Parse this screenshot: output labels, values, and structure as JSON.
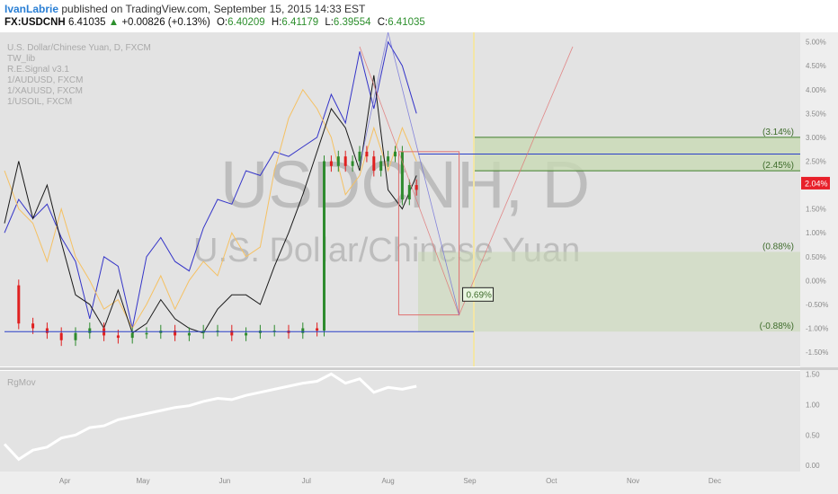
{
  "header": {
    "author": "IvanLabrie",
    "published_text": "published on TradingView.com, September 15, 2015 14:33 EST",
    "symbol": "FX:USDCNH",
    "last": "6.41035",
    "change_arrow": "▲",
    "change": "+0.00826 (+0.13%)",
    "o_label": "O:",
    "o_value": "6.40209",
    "h_label": "H:",
    "h_value": "6.41179",
    "l_label": "L:",
    "l_value": "6.39554",
    "c_label": "C:",
    "c_value": "6.41035"
  },
  "legend": [
    "U.S. Dollar/Chinese Yuan, D, FXCM",
    "TW_lib",
    "R.E.Signal v3.1",
    "1/AUDUSD, FXCM",
    "1/XAUUSD, FXCM",
    "1/USOIL, FXCM"
  ],
  "watermark": {
    "symbol": "USDCNH, D",
    "name": "U.S. Dollar/Chinese Yuan"
  },
  "colors": {
    "background": "#e3e3e3",
    "up_candle": "#2e8b2e",
    "down_candle": "#e02020",
    "neutral_candle": "#111111",
    "audusd_line": "#3434c8",
    "xauusd_line": "#f5c163",
    "usoil_line": "#1a1a1a",
    "level_line": "#2a3ec8",
    "fib_zone": "#c8d9b4",
    "projection": "#e07070",
    "vertical_marker": "#f3e6a6",
    "price_badge": "#e8202a"
  },
  "price_badge": "2.04%",
  "measure_label": "0.69%",
  "indicator": {
    "name": "RgMov",
    "color": "#ffffff"
  },
  "chart_data": [
    {
      "type": "line",
      "title": "U.S. Dollar/Chinese Yuan, D, FXCM",
      "x_ticks": [
        "Apr",
        "May",
        "Jun",
        "Jul",
        "Aug",
        "Sep",
        "Oct",
        "Nov",
        "Dec"
      ],
      "y_ticks": [
        "5.00%",
        "4.50%",
        "4.00%",
        "3.50%",
        "3.00%",
        "2.50%",
        "2.00%",
        "1.50%",
        "1.00%",
        "0.50%",
        "0.00%",
        "-0.50%",
        "-1.00%",
        "-1.50%"
      ],
      "ylim": [
        -1.8,
        5.2
      ],
      "fib_levels": [
        {
          "label": "(3.14%)",
          "value": 3.0
        },
        {
          "label": "(2.45%)",
          "value": 2.3
        },
        {
          "label": "(0.88%)",
          "value": 0.6
        },
        {
          "label": "(-0.88%)",
          "value": -1.07
        }
      ],
      "horizontal_level": -1.07,
      "series": [
        {
          "name": "U.S. Dollar/Chinese Yuan",
          "x": [
            0,
            4,
            8,
            12,
            16,
            20,
            24,
            28,
            32,
            36,
            40,
            44,
            48,
            52,
            56,
            60,
            64,
            68,
            72,
            76,
            80,
            84,
            88,
            90,
            92,
            94,
            96,
            98,
            100,
            102,
            104,
            106,
            108,
            110,
            112,
            114,
            116
          ],
          "values": [
            -0.1,
            -0.9,
            -1.0,
            -1.1,
            -1.25,
            -1.1,
            -1.0,
            -1.15,
            -1.2,
            -1.1,
            -1.1,
            -1.05,
            -1.15,
            -1.1,
            -1.05,
            -1.05,
            -1.15,
            -1.1,
            -1.05,
            -1.05,
            -1.1,
            -1.0,
            -1.05,
            2.5,
            2.4,
            2.6,
            2.4,
            2.5,
            2.7,
            2.6,
            2.3,
            2.5,
            2.6,
            2.7,
            1.7,
            2.0,
            1.9
          ]
        },
        {
          "name": "1/AUDUSD",
          "x": [
            0,
            4,
            8,
            12,
            16,
            20,
            24,
            28,
            32,
            36,
            40,
            44,
            48,
            52,
            56,
            60,
            64,
            68,
            72,
            76,
            80,
            84,
            88,
            92,
            96,
            100,
            104,
            108,
            112,
            116
          ],
          "values": [
            1.0,
            1.7,
            1.3,
            1.6,
            0.9,
            0.4,
            -0.8,
            0.5,
            0.3,
            -1.0,
            0.5,
            0.9,
            0.4,
            0.2,
            1.1,
            1.7,
            1.6,
            2.3,
            2.2,
            2.7,
            2.6,
            2.8,
            3.0,
            3.9,
            3.3,
            4.8,
            3.6,
            5.0,
            4.5,
            3.5
          ]
        },
        {
          "name": "1/XAUUSD",
          "x": [
            0,
            4,
            8,
            12,
            16,
            20,
            24,
            28,
            32,
            36,
            40,
            44,
            48,
            52,
            56,
            60,
            64,
            68,
            72,
            76,
            80,
            84,
            88,
            92,
            96,
            100,
            104,
            108,
            112,
            116
          ],
          "values": [
            2.3,
            1.5,
            1.2,
            0.4,
            1.5,
            0.5,
            0.0,
            -0.6,
            -0.4,
            -1.0,
            -0.5,
            0.1,
            -0.6,
            0.0,
            0.4,
            0.1,
            1.0,
            0.5,
            0.7,
            2.3,
            3.4,
            4.0,
            3.6,
            3.0,
            1.8,
            2.2,
            3.2,
            2.3,
            3.2,
            2.5
          ]
        },
        {
          "name": "1/USOIL",
          "x": [
            0,
            4,
            8,
            12,
            16,
            20,
            24,
            28,
            32,
            36,
            40,
            44,
            48,
            52,
            56,
            60,
            64,
            68,
            72,
            76,
            80,
            84,
            88,
            92,
            96,
            100,
            104,
            108,
            112,
            116
          ],
          "values": [
            1.2,
            2.5,
            1.3,
            2.0,
            0.8,
            -0.3,
            -0.5,
            -1.0,
            -0.2,
            -1.1,
            -0.9,
            -0.4,
            -0.8,
            -1.0,
            -1.1,
            -0.6,
            -0.3,
            -0.3,
            -0.5,
            0.3,
            1.0,
            1.8,
            2.7,
            3.6,
            3.2,
            2.3,
            4.3,
            1.9,
            1.5,
            2.2
          ]
        }
      ]
    },
    {
      "type": "line",
      "title": "RgMov",
      "y_ticks": [
        "1.50",
        "1.00",
        "0.50",
        "0.00"
      ],
      "ylim": [
        -0.1,
        1.55
      ],
      "series": [
        {
          "name": "RgMov",
          "x": [
            0,
            4,
            8,
            12,
            16,
            20,
            24,
            28,
            32,
            36,
            40,
            44,
            48,
            52,
            56,
            60,
            64,
            68,
            72,
            76,
            80,
            84,
            88,
            92,
            96,
            100,
            104,
            108,
            112,
            116
          ],
          "values": [
            0.35,
            0.1,
            0.25,
            0.3,
            0.45,
            0.5,
            0.62,
            0.65,
            0.75,
            0.8,
            0.85,
            0.9,
            0.95,
            0.98,
            1.05,
            1.1,
            1.08,
            1.15,
            1.2,
            1.25,
            1.3,
            1.35,
            1.38,
            1.5,
            1.35,
            1.42,
            1.2,
            1.28,
            1.25,
            1.3
          ]
        }
      ]
    }
  ]
}
